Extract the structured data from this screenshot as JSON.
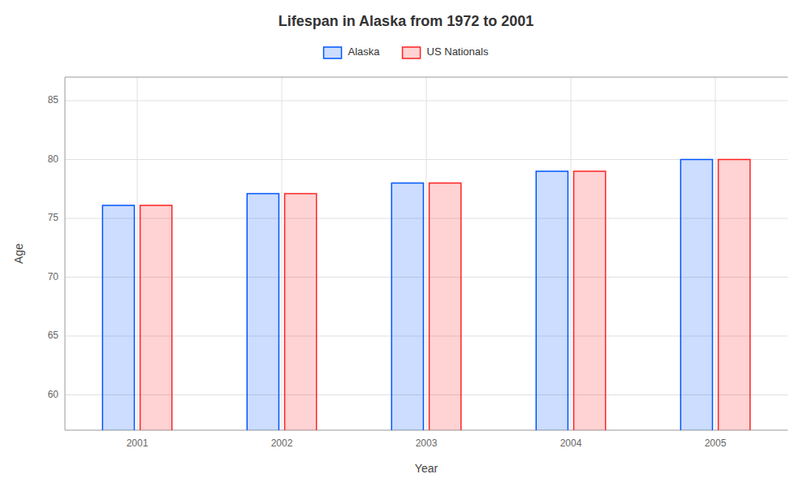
{
  "chart_data": {
    "type": "bar",
    "title": "Lifespan in Alaska from 1972 to 2001",
    "xlabel": "Year",
    "ylabel": "Age",
    "categories": [
      "2001",
      "2002",
      "2003",
      "2004",
      "2005"
    ],
    "series": [
      {
        "name": "Alaska",
        "color": "#0055ff",
        "values": [
          76.1,
          77.1,
          78.0,
          79.0,
          80.0
        ]
      },
      {
        "name": "US Nationals",
        "color": "#ff2222",
        "values": [
          76.1,
          77.1,
          78.0,
          79.0,
          80.0
        ]
      }
    ],
    "ylim": [
      57,
      87
    ],
    "yticks": [
      60,
      65,
      70,
      75,
      80,
      85
    ],
    "grid": true,
    "legend": "top"
  }
}
